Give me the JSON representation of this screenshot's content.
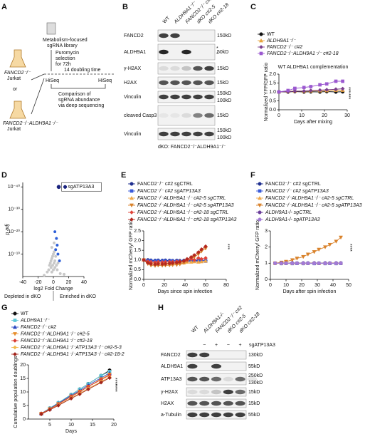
{
  "panel_labels": [
    "A",
    "B",
    "C",
    "D",
    "E",
    "F",
    "G",
    "H"
  ],
  "schematic": {
    "cell_line_1": "FANCD2⁻/⁻",
    "cell_line_1_sub": "Jurkat",
    "or": "or",
    "cell_line_2": "FANCD2⁻/⁻ALDH9A1⁻/⁻",
    "cell_line_2_sub": "Jurkat",
    "library": [
      "Metabolism-focused",
      "sgRNA library"
    ],
    "selection": [
      "Puromycin",
      "selection",
      "for 72h"
    ],
    "hiseq_1": "HiSeq",
    "duration": "14 doubling time",
    "hiseq_2": "HiSeq",
    "comparison": [
      "Comparison of",
      "sgRNA abundance",
      "via deep sequencing"
    ]
  },
  "blot_B": {
    "columns": [
      "WT",
      "ALDH9A1⁻/⁻",
      "FANCD2⁻/⁻ c#2",
      "dKO c#2-5",
      "dKO c#2-18"
    ],
    "rows": [
      {
        "label": "FANCD2",
        "markers": [
          "150kD"
        ]
      },
      {
        "label": "ALDH9A1",
        "markers": [
          "50kD"
        ]
      },
      {
        "label": "γ-H2AX",
        "markers": [
          "15kD"
        ]
      },
      {
        "label": "H2AX",
        "markers": [
          "15kD"
        ]
      },
      {
        "label": "Vinculin",
        "markers": [
          "150kD",
          "100kD"
        ]
      },
      {
        "label": "cleaved Casp3",
        "markers": [
          "15kD"
        ]
      },
      {
        "label": "Vinculin",
        "markers": [
          "150kD",
          "100kD"
        ]
      }
    ],
    "aldh9a1_marks": [
      "*",
      "*"
    ],
    "footnote": "dKO: FANCD2⁻/⁻ALDH9A1⁻/⁻"
  },
  "blot_H": {
    "columns": [
      "WT",
      "ALDH9A1-/-",
      "FANCD2⁻/⁻ c#2",
      "dKO c#2-5",
      "dKO c#2-18"
    ],
    "treatment": {
      "label": "sgATP13A3",
      "signs": [
        "−",
        "+",
        "−",
        "+"
      ]
    },
    "rows": [
      {
        "label": "FANCD2",
        "markers": [
          "130kD"
        ]
      },
      {
        "label": "ALDH9A1",
        "markers": [
          "55kD"
        ]
      },
      {
        "label": "ATP13A3",
        "markers": [
          "250kD",
          "130kD"
        ]
      },
      {
        "label": "γ-H2AX",
        "markers": [
          "15kD"
        ]
      },
      {
        "label": "H2AX",
        "markers": [
          "15kD"
        ]
      },
      {
        "label": "a-Tubulin",
        "markers": [
          "55kD"
        ]
      }
    ]
  },
  "chart_data": [
    {
      "type": "line",
      "title": "WT ALDH9A1 complementation",
      "x_label": "Days after mixing",
      "y_label": "Normalized YFP/GFP ratio",
      "x": [
        0,
        4,
        7,
        11,
        14,
        18,
        21,
        25,
        28
      ],
      "xlim": [
        0,
        30
      ],
      "xticks": [
        0,
        10,
        20,
        30
      ],
      "ylim": [
        0,
        2
      ],
      "yticks": [
        {
          "value": 0,
          "label": "0.0"
        },
        0.5,
        {
          "value": 1,
          "label": "1.0"
        },
        1.5,
        {
          "value": 2,
          "label": "2.0"
        }
      ],
      "series": [
        {
          "name": "WT",
          "color": "#111111",
          "marker": "circle",
          "values": [
            1,
            1,
            1.02,
            1,
            1.01,
            1,
            1.02,
            1,
            1.01
          ]
        },
        {
          "name": "ALDH9A1⁻/⁻",
          "color": "#e8a33c",
          "marker": "triangle",
          "values": [
            1,
            1.03,
            1.05,
            1.04,
            1.06,
            1.07,
            1.08,
            1.1,
            1.1
          ]
        },
        {
          "name": "FANCD2⁻/⁻ c#2",
          "color": "#7b3f8c",
          "marker": "diamond",
          "values": [
            1,
            1.02,
            1.04,
            1.05,
            1.08,
            1.1,
            1.12,
            1.15,
            1.18
          ]
        },
        {
          "name": "FANCD2⁻/⁻ALDH9A1⁻/⁻ c#2-18",
          "color": "#9b59d0",
          "marker": "square",
          "values": [
            1,
            1.08,
            1.2,
            1.25,
            1.3,
            1.4,
            1.45,
            1.6,
            1.6
          ]
        }
      ],
      "annotations": [
        "***",
        "***"
      ]
    },
    {
      "type": "scatter",
      "x_label": "log2 Fold Change",
      "y_label": "p adj",
      "log_y": true,
      "xlim": [
        -40,
        40
      ],
      "xticks": [
        -40,
        -20,
        0,
        20,
        40
      ],
      "ylim": [
        1,
        1e-42
      ],
      "yticks": [
        {
          "value": 1e-40,
          "label": "10⁻⁴⁰"
        },
        {
          "value": 1e-30,
          "label": "10⁻³⁰"
        },
        {
          "value": 1e-20,
          "label": "10⁻²⁰"
        },
        {
          "value": 1e-10,
          "label": "10⁻¹⁰"
        }
      ],
      "series": [
        {
          "color": "#c8c8c8",
          "x": [
            -12,
            -8,
            -6,
            -5,
            -4,
            -3,
            -3,
            -2,
            -2,
            -1,
            -1,
            0,
            0,
            1,
            1,
            2,
            2,
            3,
            4,
            5,
            6,
            9,
            14,
            -2,
            1
          ],
          "values": [
            0.3,
            0.01,
            0.001,
            1e-05,
            1e-06,
            1e-07,
            0.0001,
            1e-08,
            0.01,
            1e-09,
            1e-05,
            0.001,
            1e-10,
            1e-06,
            1e-11,
            1e-07,
            0.0001,
            1e-09,
            1e-05,
            0.001,
            1e-06,
            0.05,
            0.1,
            1e-13,
            1e-15
          ]
        },
        {
          "color": "#2d5fd8",
          "x": [
            2,
            4,
            3,
            6,
            8,
            5
          ],
          "values": [
            1e-20,
            1e-17,
            1e-12,
            1e-10,
            1e-07,
            1e-14
          ]
        },
        {
          "name": "sgATP13A3",
          "color": "#1a237e",
          "x": [
            7
          ],
          "values": [
            1e-40
          ]
        }
      ],
      "annotations": [
        "Depleted in dKO",
        "Enriched in dKO"
      ]
    },
    {
      "type": "line",
      "x_label": "Days since spin infection",
      "y_label": "Normalized mCherry/ GFP ratio",
      "x": [
        0,
        4,
        7,
        11,
        14,
        18,
        21,
        25,
        28,
        32,
        35,
        39,
        42,
        46,
        49,
        53,
        56,
        60
      ],
      "xlim": [
        0,
        80
      ],
      "xticks": [
        0,
        20,
        40,
        60,
        80
      ],
      "ylim": [
        0,
        2.5
      ],
      "yticks": [
        {
          "value": 0,
          "label": "0.0"
        },
        0.5,
        {
          "value": 1,
          "label": "1.0"
        },
        1.5,
        {
          "value": 2,
          "label": "2.0"
        },
        2.5
      ],
      "series": [
        {
          "name": "FANCD2⁻/⁻ c#2 sgCTRL",
          "color": "#1f2f8f",
          "marker": "circle",
          "values": [
            1,
            1,
            0.98,
            0.97,
            0.98,
            0.97,
            0.98,
            0.97,
            0.96,
            0.97,
            0.96,
            0.97,
            0.98,
            0.97,
            0.98,
            0.97,
            0.96,
            0.97
          ]
        },
        {
          "name": "FANCD2⁻/⁻ c#2 sgATP13A3",
          "color": "#3a5bd9",
          "marker": "square",
          "values": [
            1,
            0.96,
            0.95,
            0.94,
            0.95,
            0.94,
            0.95,
            0.94,
            0.95,
            0.94,
            0.93,
            0.94,
            0.95,
            0.94,
            0.95,
            0.94,
            0.95,
            0.94
          ]
        },
        {
          "name": "FANCD2⁻/⁻ALDH9A1⁻/⁻ c#2-5 sgCTRL",
          "color": "#f0a848",
          "marker": "triangle",
          "values": [
            1,
            0.9,
            0.85,
            0.84,
            0.85,
            0.84,
            0.85,
            0.84,
            0.85,
            0.86,
            0.85,
            0.86,
            0.9,
            0.9,
            0.92,
            0.9,
            0.92,
            0.95
          ]
        },
        {
          "name": "FANCD2⁻/⁻ALDH9A1⁻/⁻ c#2-5 sgATP13A3",
          "color": "#d9822b",
          "marker": "triangle-down",
          "values": [
            1,
            0.8,
            0.72,
            0.7,
            0.72,
            0.71,
            0.72,
            0.73,
            0.74,
            0.75,
            0.78,
            0.85,
            0.95,
            1.05,
            1.15,
            1.3,
            1.45,
            1.6
          ]
        },
        {
          "name": "FANCD2⁻/⁻ALDH9A1⁻/⁻ c#2-18 sgCTRL",
          "color": "#e0443a",
          "marker": "diamond",
          "values": [
            1,
            0.92,
            0.9,
            0.88,
            0.9,
            0.89,
            0.9,
            0.91,
            0.9,
            0.92,
            0.93,
            0.95,
            1,
            1.05,
            1,
            1.1,
            1.05,
            1.1
          ]
        },
        {
          "name": "FANCD2⁻/⁻ALDH9A1⁻/⁻ c#2-18 sgATP13A3",
          "color": "#b5281f",
          "marker": "diamond",
          "values": [
            1,
            0.85,
            0.8,
            0.78,
            0.8,
            0.79,
            0.8,
            0.82,
            0.84,
            0.86,
            0.9,
            0.95,
            1.05,
            1.15,
            1.25,
            1.4,
            1.55,
            1.7
          ]
        }
      ],
      "annotations": [
        "***"
      ]
    },
    {
      "type": "line",
      "x_label": "Days after spin infection",
      "y_label": "Normalized mCherry/ GFP ratio",
      "x": [
        3,
        7,
        10,
        14,
        17,
        21,
        24,
        28,
        31,
        35,
        38,
        42,
        45
      ],
      "xlim": [
        0,
        50
      ],
      "xticks": [
        0,
        10,
        20,
        30,
        40,
        50
      ],
      "ylim": [
        0,
        3
      ],
      "yticks": [
        0,
        1,
        2,
        3
      ],
      "series": [
        {
          "name": "FANCD2⁻/⁻ c#2 sgCTRL",
          "color": "#1f2f8f",
          "marker": "circle",
          "values": [
            1,
            1,
            1,
            1.01,
            1,
            1,
            1.01,
            1,
            1,
            1.01,
            1,
            1,
            1.01
          ]
        },
        {
          "name": "FANCD2⁻/⁻ c#2 sgATP13A3",
          "color": "#3a5bd9",
          "marker": "square",
          "values": [
            1,
            0.98,
            0.99,
            0.98,
            0.99,
            0.98,
            0.99,
            0.98,
            0.99,
            0.98,
            0.99,
            0.98,
            0.99
          ]
        },
        {
          "name": "FANCD2⁻/⁻ALDH9A1⁻/⁻ c#2-5 sgCTRL",
          "color": "#f0a848",
          "marker": "triangle",
          "values": [
            1,
            1,
            1.01,
            1,
            1.02,
            1,
            1.01,
            1.02,
            1,
            1.01,
            1.02,
            1.01,
            1.02
          ]
        },
        {
          "name": "FANCD2⁻/⁻ALDH9A1⁻/⁻ c#2-5 sgATP13A3",
          "color": "#d9822b",
          "marker": "triangle-down",
          "values": [
            1,
            1.05,
            1.1,
            1.2,
            1.3,
            1.4,
            1.55,
            1.7,
            1.85,
            2,
            2.15,
            2.35,
            2.6
          ]
        },
        {
          "name": "ALDH9A1-/- sgCTRL",
          "color": "#6a3d9a",
          "marker": "circle",
          "values": [
            1,
            1.01,
            1,
            1.01,
            1,
            1.01,
            1,
            1.01,
            1,
            1.01,
            1,
            1.01,
            1
          ]
        },
        {
          "name": "ALDH9A1-/- sgATP13A3",
          "color": "#a37bd6",
          "marker": "circle",
          "values": [
            1,
            0.99,
            1,
            0.99,
            1,
            0.99,
            1,
            0.99,
            1,
            0.99,
            1,
            0.99,
            1
          ]
        }
      ],
      "annotations": [
        "****"
      ]
    },
    {
      "type": "line",
      "x_label": "Days",
      "y_label": "Cumulative population doublings",
      "x": [
        3,
        5,
        7,
        10,
        12,
        14,
        17,
        19
      ],
      "xlim": [
        0,
        20
      ],
      "xticks": [
        5,
        10,
        15,
        20
      ],
      "ylim": [
        0,
        20
      ],
      "yticks": [
        0,
        5,
        10,
        15,
        20
      ],
      "series": [
        {
          "name": "WT",
          "color": "#111111",
          "marker": "circle",
          "values": [
            2,
            4,
            6,
            9,
            11,
            13,
            16,
            18
          ]
        },
        {
          "name": "ALDH9A1⁻/⁻",
          "color": "#5fc8d8",
          "marker": "square",
          "values": [
            2,
            4,
            6,
            9,
            11,
            13,
            16,
            17.5
          ]
        },
        {
          "name": "FANCD2⁻/⁻ c#2",
          "color": "#2a47c2",
          "marker": "triangle",
          "values": [
            2,
            3.8,
            5.8,
            8.7,
            10.5,
            12.5,
            15.2,
            17
          ]
        },
        {
          "name": "FANCD2⁻/⁻ALDH9A1⁻/⁻ c#2-5",
          "color": "#e8902f",
          "marker": "triangle-down",
          "values": [
            2,
            3.7,
            5.6,
            8.4,
            10.2,
            12,
            14.8,
            16.5
          ]
        },
        {
          "name": "FANCD2⁻/⁻ALDH9A1⁻/⁻ c#2-18",
          "color": "#d93a2f",
          "marker": "diamond",
          "values": [
            2,
            3.7,
            5.5,
            8.3,
            10,
            12,
            14.5,
            16.2
          ]
        },
        {
          "name": "FANCD2⁻/⁻ALDH9A1⁻/⁻ATP13A3⁻/⁻ c#2-5-3",
          "color": "#f2b94b",
          "marker": "diamond",
          "values": [
            1.8,
            3.5,
            5.2,
            7.8,
            9.5,
            11.3,
            13.8,
            15.5
          ]
        },
        {
          "name": "FANCD2⁻/⁻ALDH9A1⁻/⁻ATP13A3⁻/⁻ c#2-18-2",
          "color": "#a3241b",
          "marker": "diamond",
          "values": [
            1.8,
            3.4,
            5,
            7.6,
            9.2,
            11,
            13.5,
            15.2
          ]
        }
      ],
      "annotations": [
        "****",
        "****"
      ]
    }
  ]
}
